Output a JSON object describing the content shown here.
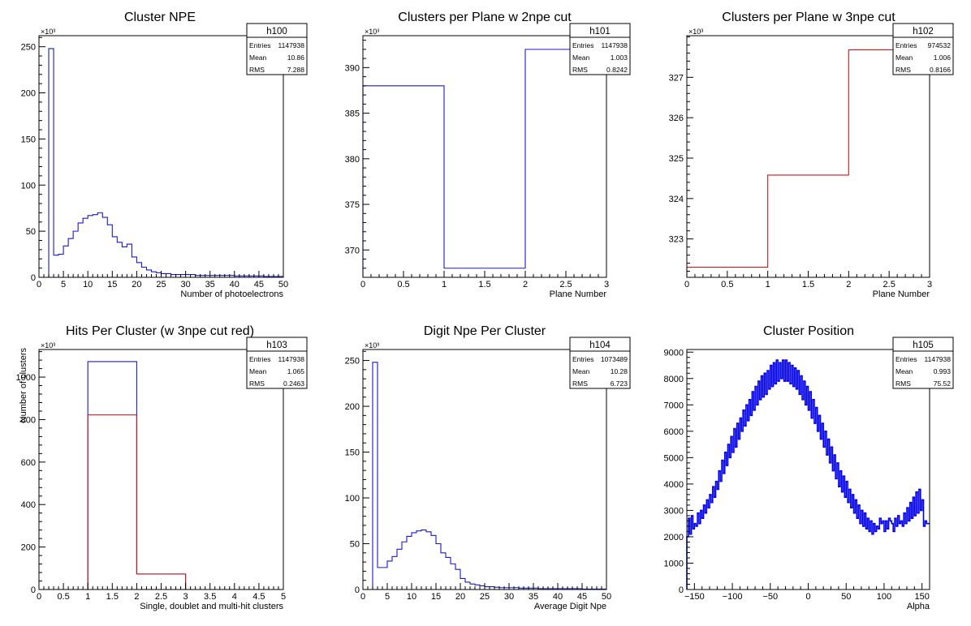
{
  "chart_data": [
    {
      "type": "histogram",
      "id": "h100",
      "title": "Cluster NPE",
      "xlabel": "Number of photoelectrons",
      "ylabel": "",
      "xlim": [
        0,
        50
      ],
      "ylim": [
        0,
        262
      ],
      "y_multiplier": "×10³",
      "xticks": [
        0,
        5,
        10,
        15,
        20,
        25,
        30,
        35,
        40,
        45,
        50
      ],
      "yticks": [
        0,
        50,
        100,
        150,
        200,
        250
      ],
      "stats": [
        {
          "label": "Entries",
          "value": "1147938"
        },
        {
          "label": "Mean",
          "value": "10.86"
        },
        {
          "label": "RMS",
          "value": "7.288"
        }
      ],
      "series": [
        {
          "color": "#1a1acc",
          "bin_edges_start": 0,
          "bin_width": 1,
          "values": [
            0,
            0,
            248,
            24,
            25,
            34,
            42,
            50,
            59,
            64,
            67,
            68,
            70,
            65,
            57,
            44,
            38,
            33,
            36,
            22,
            16,
            11,
            8,
            6,
            5,
            4,
            4,
            3,
            3,
            3,
            3,
            3,
            2,
            2,
            2,
            2,
            2,
            2,
            2,
            2,
            1.5,
            1.5,
            1.5,
            1.5,
            1.5,
            1.5,
            1,
            1,
            1,
            1
          ]
        }
      ]
    },
    {
      "type": "histogram",
      "id": "h101",
      "title": "Clusters per Plane w 2npe cut",
      "xlabel": "Plane Number",
      "ylabel": "",
      "xlim": [
        0,
        3
      ],
      "ylim": [
        367,
        393.5
      ],
      "y_multiplier": "×10³",
      "xticks": [
        0,
        0.5,
        1,
        1.5,
        2,
        2.5,
        3
      ],
      "yticks": [
        370,
        375,
        380,
        385,
        390
      ],
      "stats": [
        {
          "label": "Entries",
          "value": "1147938"
        },
        {
          "label": "Mean",
          "value": "1.003"
        },
        {
          "label": "RMS",
          "value": "0.8242"
        }
      ],
      "series": [
        {
          "color": "#1a1acc",
          "bin_edges_start": 0,
          "bin_width": 1,
          "values": [
            388,
            368,
            392
          ]
        }
      ]
    },
    {
      "type": "histogram",
      "id": "h102",
      "title": "Clusters per Plane w 3npe cut",
      "xlabel": "Plane Number",
      "ylabel": "",
      "xlim": [
        0,
        3
      ],
      "ylim": [
        322.05,
        328.03
      ],
      "y_multiplier": "×10³",
      "xticks": [
        0,
        0.5,
        1,
        1.5,
        2,
        2.5,
        3
      ],
      "yticks": [
        323,
        324,
        325,
        326,
        327
      ],
      "stats": [
        {
          "label": "Entries",
          "value": "974532"
        },
        {
          "label": "Mean",
          "value": "1.006"
        },
        {
          "label": "RMS",
          "value": "0.8166"
        }
      ],
      "series": [
        {
          "color": "#cc1a1a",
          "bin_edges_start": 0,
          "bin_width": 1,
          "values": [
            322.3,
            324.58,
            327.68
          ]
        }
      ]
    },
    {
      "type": "histogram",
      "id": "h103",
      "title": "Hits Per Cluster (w 3npe cut red)",
      "xlabel": "Single, doublet and multi-hit clusters",
      "ylabel": "Number of clusters",
      "xlim": [
        0,
        5
      ],
      "ylim": [
        0,
        1130
      ],
      "y_multiplier": "×10³",
      "xticks": [
        0,
        0.5,
        1,
        1.5,
        2,
        2.5,
        3,
        3.5,
        4,
        4.5,
        5
      ],
      "yticks": [
        0,
        200,
        400,
        600,
        800,
        1000
      ],
      "stats": [
        {
          "label": "Entries",
          "value": "1147938"
        },
        {
          "label": "Mean",
          "value": "1.065"
        },
        {
          "label": "RMS",
          "value": "0.2463"
        }
      ],
      "series": [
        {
          "color": "#1a1acc",
          "bin_edges_start": 1,
          "bin_width": 1,
          "values": [
            1073,
            73,
            0
          ]
        },
        {
          "color": "#cc1a1a",
          "bin_edges_start": 0,
          "bin_width": 1,
          "values": [
            0,
            822,
            73,
            0,
            0
          ]
        }
      ]
    },
    {
      "type": "histogram",
      "id": "h104",
      "title": "Digit Npe Per Cluster",
      "xlabel": "Average Digit Npe",
      "ylabel": "",
      "xlim": [
        0,
        50
      ],
      "ylim": [
        0,
        262
      ],
      "y_multiplier": "×10³",
      "xticks": [
        0,
        5,
        10,
        15,
        20,
        25,
        30,
        35,
        40,
        45,
        50
      ],
      "yticks": [
        0,
        50,
        100,
        150,
        200,
        250
      ],
      "stats": [
        {
          "label": "Entries",
          "value": "1073489"
        },
        {
          "label": "Mean",
          "value": "10.28"
        },
        {
          "label": "RMS",
          "value": "6.723"
        }
      ],
      "series": [
        {
          "color": "#1a1acc",
          "bin_edges_start": 0,
          "bin_width": 1,
          "values": [
            0,
            0,
            248,
            24,
            24,
            31,
            36,
            44,
            52,
            58,
            62,
            64,
            65,
            63,
            59,
            50,
            40,
            35,
            28,
            22,
            12,
            8,
            6,
            5,
            4,
            3,
            3,
            2.5,
            2,
            2,
            2,
            2,
            1.5,
            1.5,
            1.5,
            1.5,
            1,
            1,
            1,
            1,
            1,
            1,
            1,
            1,
            1,
            0.5,
            0.5,
            0.5,
            0.5,
            0.5
          ]
        },
        {
          "color": "#cc1a1a",
          "bin_edges_start": 0,
          "bin_width": 1,
          "values": [
            0,
            0,
            0,
            0,
            0,
            0,
            0,
            0,
            0,
            0,
            0,
            0,
            0,
            0,
            0,
            0,
            0,
            0,
            0,
            0,
            0,
            0,
            0,
            0,
            0,
            0,
            0,
            0,
            0,
            0,
            0,
            0,
            0,
            0,
            0,
            0,
            0,
            0,
            0,
            0,
            0,
            0,
            0,
            0,
            0,
            0,
            0,
            0,
            0,
            0
          ]
        }
      ]
    },
    {
      "type": "histogram",
      "id": "h105",
      "title": "Cluster Position",
      "xlabel": "Alpha",
      "ylabel": "",
      "xlim": [
        -160,
        160
      ],
      "ylim": [
        0,
        9100
      ],
      "y_multiplier": "",
      "xticks": [
        -150,
        -100,
        -50,
        0,
        50,
        100,
        150
      ],
      "yticks": [
        0,
        1000,
        2000,
        3000,
        4000,
        5000,
        6000,
        7000,
        8000,
        9000
      ],
      "stats": [
        {
          "label": "Entries",
          "value": "1147938"
        },
        {
          "label": "Mean",
          "value": "0.993"
        },
        {
          "label": "RMS",
          "value": "75.52"
        }
      ],
      "series": [
        {
          "color": "#0000ee",
          "bin_edges_start": -160,
          "bin_width": 2,
          "values": [
            2000,
            2700,
            2100,
            2800,
            2300,
            2500,
            2400,
            2900,
            2500,
            3000,
            2700,
            3200,
            2900,
            3400,
            3100,
            3600,
            3300,
            3900,
            3500,
            4100,
            3800,
            4500,
            4100,
            4900,
            4400,
            5200,
            4700,
            5500,
            5000,
            5800,
            5200,
            6100,
            5400,
            6300,
            5700,
            6500,
            6000,
            6800,
            6200,
            7000,
            6400,
            7200,
            6600,
            7500,
            6800,
            7700,
            7000,
            7900,
            7200,
            8100,
            7300,
            8200,
            7400,
            8300,
            7600,
            8500,
            7700,
            8600,
            7800,
            8700,
            7900,
            8600,
            8000,
            8700,
            7900,
            8700,
            7900,
            8600,
            7800,
            8500,
            7700,
            8400,
            7600,
            8300,
            7400,
            8100,
            7200,
            7900,
            7000,
            7700,
            6800,
            7500,
            6500,
            7200,
            6300,
            6900,
            6000,
            6600,
            5700,
            6300,
            5400,
            6000,
            5100,
            5700,
            4800,
            5400,
            4500,
            5100,
            4200,
            4800,
            3900,
            4500,
            3700,
            4300,
            3500,
            4100,
            3300,
            3800,
            3100,
            3600,
            2900,
            3400,
            2700,
            3200,
            2500,
            3000,
            2400,
            2900,
            2300,
            2700,
            2200,
            2600,
            2100,
            2500,
            2200,
            2400,
            2300,
            2700,
            2500,
            2600,
            2200,
            2600,
            2300,
            2700,
            2600,
            2500,
            2200,
            2700,
            2400,
            2800,
            2500,
            2600,
            2400,
            2900,
            2500,
            3100,
            2600,
            3300,
            2700,
            3500,
            2800,
            3700,
            2900,
            3800,
            3000,
            3400,
            2400,
            2600,
            2500,
            2500
          ]
        }
      ]
    }
  ]
}
